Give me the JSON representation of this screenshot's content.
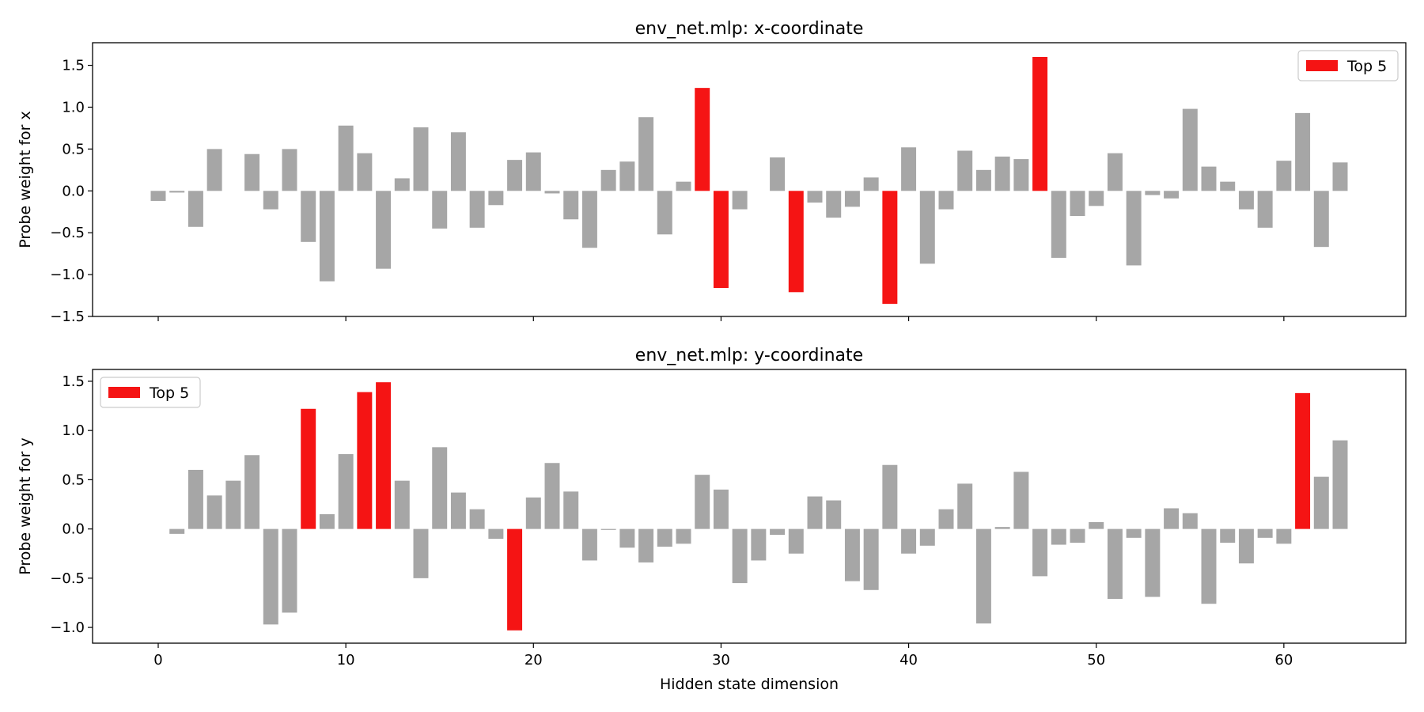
{
  "figure": {
    "xlabel": "Hidden state dimension"
  },
  "colors": {
    "normal": "#a6a6a6",
    "top": "#f51414"
  },
  "chart_data": [
    {
      "type": "bar",
      "title": "env_net.mlp: x-coordinate",
      "ylabel": "Probe weight for x",
      "xlabel": "",
      "xlim": [
        -3.5,
        66.5
      ],
      "ylim": [
        -1.5,
        1.77
      ],
      "xticks": [
        0,
        10,
        20,
        30,
        40,
        50,
        60
      ],
      "yticks": [
        -1.5,
        -1.0,
        -0.5,
        0.0,
        0.5,
        1.0,
        1.5
      ],
      "x": [
        0,
        1,
        2,
        3,
        4,
        5,
        6,
        7,
        8,
        9,
        10,
        11,
        12,
        13,
        14,
        15,
        16,
        17,
        18,
        19,
        20,
        21,
        22,
        23,
        24,
        25,
        26,
        27,
        28,
        29,
        30,
        31,
        32,
        33,
        34,
        35,
        36,
        37,
        38,
        39,
        40,
        41,
        42,
        43,
        44,
        45,
        46,
        47,
        48,
        49,
        50,
        51,
        52,
        53,
        54,
        55,
        56,
        57,
        58,
        59,
        60,
        61,
        62,
        63
      ],
      "values": [
        -0.12,
        -0.02,
        -0.43,
        0.5,
        0.0,
        0.44,
        -0.22,
        0.5,
        -0.61,
        -1.08,
        0.78,
        0.45,
        -0.93,
        0.15,
        0.76,
        -0.45,
        0.7,
        -0.44,
        -0.17,
        0.37,
        0.46,
        -0.03,
        -0.34,
        -0.68,
        0.25,
        0.35,
        0.88,
        -0.52,
        0.11,
        1.23,
        -1.16,
        -0.22,
        0.0,
        0.4,
        -1.21,
        -0.14,
        -0.32,
        -0.19,
        0.16,
        -1.35,
        0.52,
        -0.87,
        -0.22,
        0.48,
        0.25,
        0.41,
        0.38,
        1.6,
        -0.8,
        -0.3,
        -0.18,
        0.45,
        -0.89,
        -0.05,
        -0.09,
        0.98,
        0.29,
        0.11,
        -0.22,
        -0.44,
        0.36,
        0.93,
        -0.67,
        0.34
      ],
      "top5": [
        29,
        30,
        34,
        39,
        47
      ],
      "legend": {
        "label": "Top 5",
        "position": "top-right"
      }
    },
    {
      "type": "bar",
      "title": "env_net.mlp: y-coordinate",
      "ylabel": "Probe weight for y",
      "xlabel": "Hidden state dimension",
      "xlim": [
        -3.5,
        66.5
      ],
      "ylim": [
        -1.16,
        1.62
      ],
      "xticks": [
        0,
        10,
        20,
        30,
        40,
        50,
        60
      ],
      "yticks": [
        -1.0,
        -0.5,
        0.0,
        0.5,
        1.0,
        1.5
      ],
      "x": [
        0,
        1,
        2,
        3,
        4,
        5,
        6,
        7,
        8,
        9,
        10,
        11,
        12,
        13,
        14,
        15,
        16,
        17,
        18,
        19,
        20,
        21,
        22,
        23,
        24,
        25,
        26,
        27,
        28,
        29,
        30,
        31,
        32,
        33,
        34,
        35,
        36,
        37,
        38,
        39,
        40,
        41,
        42,
        43,
        44,
        45,
        46,
        47,
        48,
        49,
        50,
        51,
        52,
        53,
        54,
        55,
        56,
        57,
        58,
        59,
        60,
        61,
        62,
        63
      ],
      "values": [
        0.0,
        -0.05,
        0.6,
        0.34,
        0.49,
        0.75,
        -0.97,
        -0.85,
        1.22,
        0.15,
        0.76,
        1.39,
        1.49,
        0.49,
        -0.5,
        0.83,
        0.37,
        0.2,
        -0.1,
        -1.03,
        0.32,
        0.67,
        0.38,
        -0.32,
        -0.01,
        -0.19,
        -0.34,
        -0.18,
        -0.15,
        0.55,
        0.4,
        -0.55,
        -0.32,
        -0.06,
        -0.25,
        0.33,
        0.29,
        -0.53,
        -0.62,
        0.65,
        -0.25,
        -0.17,
        0.2,
        0.46,
        -0.96,
        0.02,
        0.58,
        -0.48,
        -0.16,
        -0.14,
        0.07,
        -0.71,
        -0.09,
        -0.69,
        0.21,
        0.16,
        -0.76,
        -0.14,
        -0.35,
        -0.09,
        -0.15,
        1.38,
        0.53,
        0.9
      ],
      "top5": [
        8,
        11,
        12,
        19,
        61
      ],
      "legend": {
        "label": "Top 5",
        "position": "top-left"
      }
    }
  ]
}
